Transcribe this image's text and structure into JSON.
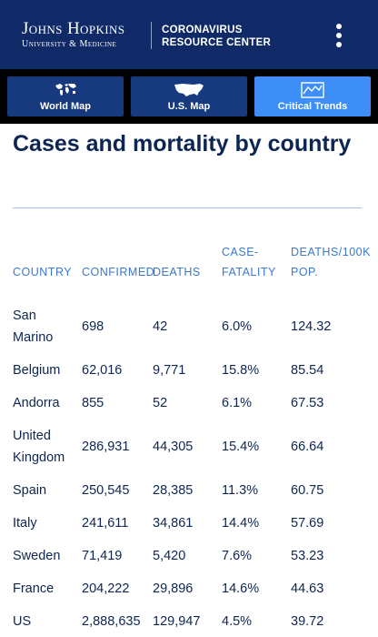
{
  "header": {
    "logo_main": "Johns Hopkins",
    "logo_sub": "University & Medicine",
    "resource_line1": "CORONAVIRUS",
    "resource_line2": "RESOURCE CENTER"
  },
  "nav": {
    "items": [
      {
        "label": "World Map",
        "icon": "world-map-icon",
        "active": false
      },
      {
        "label": "U.S. Map",
        "icon": "us-map-icon",
        "active": false
      },
      {
        "label": "Critical Trends",
        "icon": "trend-chart-icon",
        "active": true
      }
    ]
  },
  "main": {
    "title": "Cases and mortality by country",
    "table": {
      "headers": {
        "country": "COUNTRY",
        "confirmed": "CONFIRMED",
        "deaths": "DEATHS",
        "case_fatality": "CASE-FATALITY",
        "deaths_per_100k": "DEATHS/100K POP."
      },
      "rows": [
        {
          "country": "San Marino",
          "confirmed": "698",
          "deaths": "42",
          "case_fatality": "6.0%",
          "deaths_per_100k": "124.32"
        },
        {
          "country": "Belgium",
          "confirmed": "62,016",
          "deaths": "9,771",
          "case_fatality": "15.8%",
          "deaths_per_100k": "85.54"
        },
        {
          "country": "Andorra",
          "confirmed": "855",
          "deaths": "52",
          "case_fatality": "6.1%",
          "deaths_per_100k": "67.53"
        },
        {
          "country": "United Kingdom",
          "confirmed": "286,931",
          "deaths": "44,305",
          "case_fatality": "15.4%",
          "deaths_per_100k": "66.64"
        },
        {
          "country": "Spain",
          "confirmed": "250,545",
          "deaths": "28,385",
          "case_fatality": "11.3%",
          "deaths_per_100k": "60.75"
        },
        {
          "country": "Italy",
          "confirmed": "241,611",
          "deaths": "34,861",
          "case_fatality": "14.4%",
          "deaths_per_100k": "57.69"
        },
        {
          "country": "Sweden",
          "confirmed": "71,419",
          "deaths": "5,420",
          "case_fatality": "7.6%",
          "deaths_per_100k": "53.23"
        },
        {
          "country": "France",
          "confirmed": "204,222",
          "deaths": "29,896",
          "case_fatality": "14.6%",
          "deaths_per_100k": "44.63"
        },
        {
          "country": "US",
          "confirmed": "2,888,635",
          "deaths": "129,947",
          "case_fatality": "4.5%",
          "deaths_per_100k": "39.72"
        }
      ]
    }
  }
}
